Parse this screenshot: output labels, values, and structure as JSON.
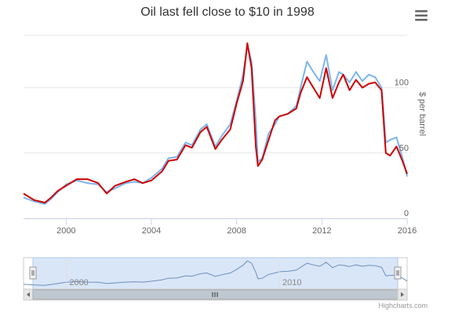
{
  "title": "Oil last fell close to $10 in 1998",
  "credits": "Highcharts.com",
  "menu_icon": "hamburger-menu-icon",
  "chart_data": {
    "type": "line",
    "title": "Oil last fell close to $10 in 1998",
    "ylabel": "$ per barrel",
    "xlim": [
      1998,
      2016
    ],
    "ylim": [
      0,
      140
    ],
    "x_tick_labels": [
      "2000",
      "2004",
      "2008",
      "2012",
      "2016"
    ],
    "x_ticks": [
      2000,
      2004,
      2008,
      2012,
      2016
    ],
    "y_tick_labels": [
      "0",
      "50",
      "100"
    ],
    "y_ticks": [
      0,
      50,
      100
    ],
    "grid": true,
    "series": [
      {
        "color": "#7cb5ec",
        "x": [
          1998.0,
          1998.5,
          1999.0,
          1999.3,
          1999.6,
          2000.0,
          2000.5,
          2001.0,
          2001.5,
          2001.9,
          2002.3,
          2002.8,
          2003.2,
          2003.6,
          2004.0,
          2004.5,
          2004.8,
          2005.2,
          2005.6,
          2005.9,
          2006.3,
          2006.6,
          2007.0,
          2007.3,
          2007.7,
          2008.0,
          2008.3,
          2008.5,
          2008.7,
          2008.9,
          2009.0,
          2009.2,
          2009.5,
          2009.8,
          2010.0,
          2010.4,
          2010.8,
          2011.0,
          2011.3,
          2011.6,
          2011.9,
          2012.2,
          2012.5,
          2012.8,
          2013.0,
          2013.3,
          2013.6,
          2013.9,
          2014.2,
          2014.5,
          2014.8,
          2015.0,
          2015.2,
          2015.5,
          2015.8,
          2016.0
        ],
        "values": [
          16,
          13,
          11,
          15,
          20,
          26,
          29,
          27,
          26,
          20,
          23,
          27,
          28,
          27,
          31,
          38,
          46,
          47,
          58,
          56,
          68,
          72,
          55,
          63,
          72,
          90,
          110,
          132,
          120,
          75,
          43,
          46,
          65,
          72,
          78,
          80,
          86,
          100,
          120,
          112,
          105,
          125,
          98,
          112,
          110,
          104,
          112,
          105,
          110,
          108,
          100,
          58,
          60,
          62,
          45,
          32
        ]
      },
      {
        "color": "#cc0000",
        "x": [
          1998.0,
          1998.5,
          1999.0,
          1999.3,
          1999.6,
          2000.0,
          2000.5,
          2001.0,
          2001.5,
          2001.9,
          2002.3,
          2002.8,
          2003.2,
          2003.6,
          2004.0,
          2004.5,
          2004.8,
          2005.2,
          2005.6,
          2005.9,
          2006.3,
          2006.6,
          2007.0,
          2007.3,
          2007.7,
          2008.0,
          2008.3,
          2008.5,
          2008.7,
          2008.9,
          2009.0,
          2009.2,
          2009.5,
          2009.8,
          2010.0,
          2010.4,
          2010.8,
          2011.0,
          2011.3,
          2011.6,
          2011.9,
          2012.2,
          2012.5,
          2012.8,
          2013.0,
          2013.3,
          2013.6,
          2013.9,
          2014.2,
          2014.5,
          2014.8,
          2015.0,
          2015.2,
          2015.5,
          2015.8,
          2016.0
        ],
        "values": [
          19,
          14,
          12,
          16,
          21,
          25,
          30,
          30,
          27,
          19,
          25,
          28,
          30,
          27,
          29,
          36,
          44,
          45,
          56,
          54,
          66,
          70,
          53,
          60,
          68,
          88,
          105,
          134,
          115,
          55,
          40,
          45,
          60,
          75,
          78,
          80,
          84,
          96,
          108,
          100,
          92,
          115,
          92,
          104,
          110,
          98,
          106,
          100,
          103,
          104,
          98,
          50,
          48,
          55,
          43,
          34
        ]
      }
    ]
  }
}
